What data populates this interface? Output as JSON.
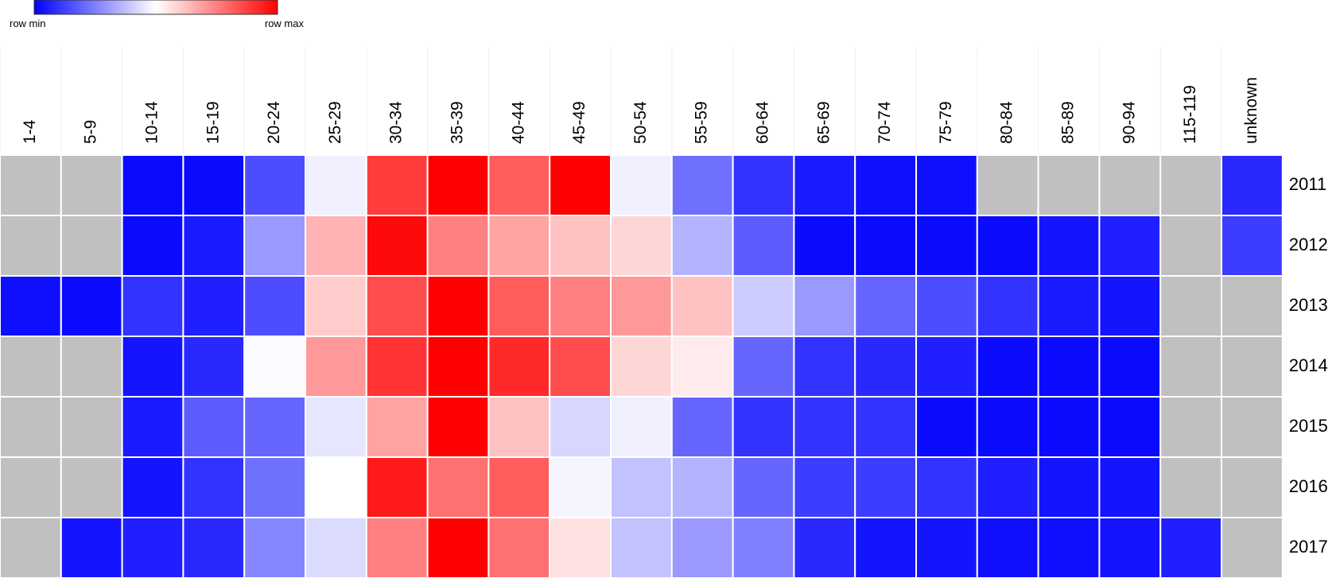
{
  "chart_data": {
    "type": "heatmap",
    "legend": {
      "min_label": "row min",
      "max_label": "row max"
    },
    "colormap": [
      "#0000ff",
      "#ffffff",
      "#ff0000"
    ],
    "null_color": "#c0c0c0",
    "vlim": [
      0,
      100
    ],
    "columns": [
      "1-4",
      "5-9",
      "10-14",
      "15-19",
      "20-24",
      "25-29",
      "30-34",
      "35-39",
      "40-44",
      "45-49",
      "50-54",
      "55-59",
      "60-64",
      "65-69",
      "70-74",
      "75-79",
      "80-84",
      "85-89",
      "90-94",
      "115-119",
      "unknown"
    ],
    "rows": [
      "2011",
      "2012",
      "2013",
      "2014",
      "2015",
      "2016",
      "2017"
    ],
    "values": [
      [
        null,
        null,
        2,
        2,
        15,
        47,
        88,
        100,
        82,
        100,
        47,
        22,
        10,
        5,
        3,
        3,
        null,
        null,
        null,
        null,
        8
      ],
      [
        null,
        null,
        2,
        5,
        30,
        65,
        98,
        75,
        68,
        62,
        58,
        35,
        18,
        2,
        2,
        2,
        2,
        4,
        6,
        null,
        12
      ],
      [
        3,
        2,
        10,
        6,
        15,
        60,
        85,
        100,
        82,
        75,
        70,
        62,
        40,
        30,
        20,
        15,
        10,
        5,
        4,
        null,
        null
      ],
      [
        null,
        null,
        4,
        8,
        49,
        70,
        90,
        100,
        92,
        85,
        58,
        54,
        20,
        10,
        8,
        6,
        2,
        2,
        2,
        null,
        null
      ],
      [
        null,
        null,
        5,
        18,
        20,
        45,
        68,
        100,
        62,
        42,
        47,
        20,
        10,
        10,
        10,
        2,
        2,
        2,
        2,
        null,
        null
      ],
      [
        null,
        null,
        4,
        10,
        22,
        50,
        95,
        78,
        82,
        48,
        38,
        35,
        20,
        12,
        12,
        10,
        6,
        4,
        4,
        null,
        null
      ],
      [
        null,
        4,
        6,
        8,
        26,
        43,
        75,
        100,
        78,
        56,
        38,
        30,
        25,
        8,
        4,
        4,
        3,
        3,
        4,
        6,
        null
      ]
    ]
  }
}
